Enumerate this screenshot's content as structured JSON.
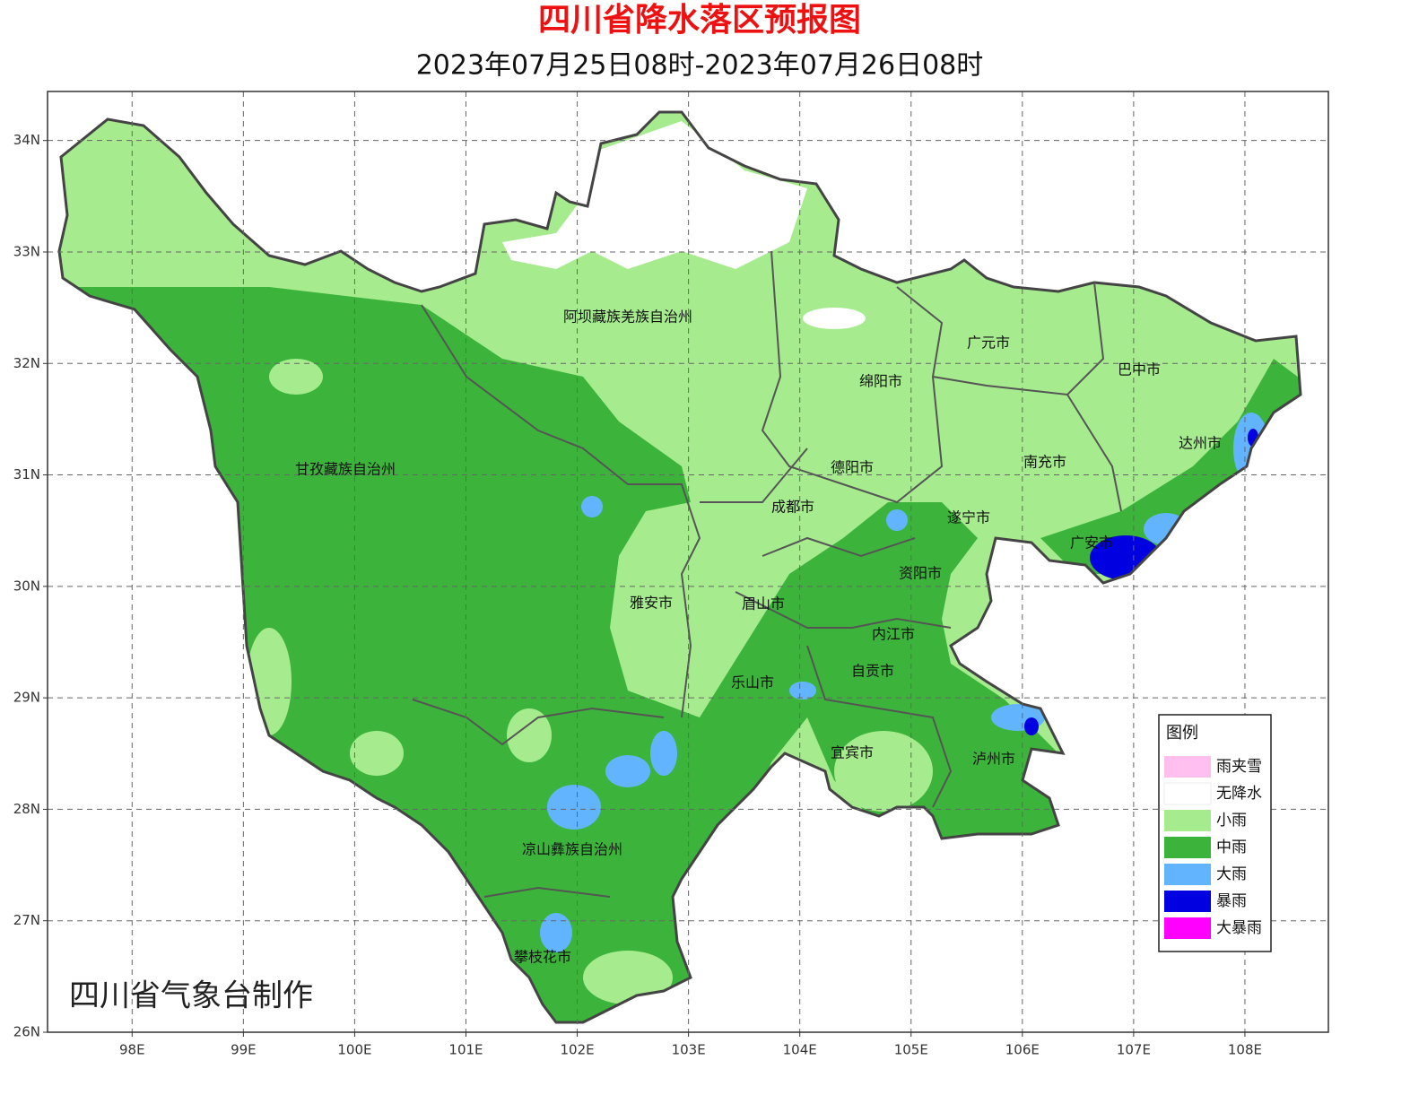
{
  "title": "四川省降水落区预报图",
  "subtitle": "2023年07月25日08时-2023年07月26日08时",
  "credit": "四川省气象台制作",
  "map": {
    "lon_range": [
      97.24,
      108.75
    ],
    "lat_range": [
      26,
      34.44
    ],
    "lon_ticks": [
      {
        "value": 98,
        "label": "98E"
      },
      {
        "value": 99,
        "label": "99E"
      },
      {
        "value": 100,
        "label": "100E"
      },
      {
        "value": 101,
        "label": "101E"
      },
      {
        "value": 102,
        "label": "102E"
      },
      {
        "value": 103,
        "label": "103E"
      },
      {
        "value": 104,
        "label": "104E"
      },
      {
        "value": 105,
        "label": "105E"
      },
      {
        "value": 106,
        "label": "106E"
      },
      {
        "value": 107,
        "label": "107E"
      },
      {
        "value": 108,
        "label": "108E"
      }
    ],
    "lat_ticks": [
      {
        "value": 34,
        "label": "34N"
      },
      {
        "value": 33,
        "label": "33N"
      },
      {
        "value": 32,
        "label": "32N"
      },
      {
        "value": 31,
        "label": "31N"
      },
      {
        "value": 30,
        "label": "30N"
      },
      {
        "value": 29,
        "label": "29N"
      },
      {
        "value": 28,
        "label": "28N"
      },
      {
        "value": 27,
        "label": "27N"
      },
      {
        "value": 26,
        "label": "26N"
      }
    ],
    "regions": [
      "阿坝藏族羌族自治州",
      "广元市",
      "巴中市",
      "绵阳市",
      "达州市",
      "南充市",
      "德阳市",
      "甘孜藏族自治州",
      "成都市",
      "遂宁市",
      "广安市",
      "资阳市",
      "雅安市",
      "眉山市",
      "内江市",
      "自贡市",
      "乐山市",
      "宜宾市",
      "泸州市",
      "凉山彝族自治州",
      "攀枝花市"
    ]
  },
  "legend": {
    "title": "图例",
    "items": [
      {
        "label": "雨夹雪",
        "color": "#ffc0f0"
      },
      {
        "label": "无降水",
        "color": "#ffffff"
      },
      {
        "label": "小雨",
        "color": "#a6ec8f"
      },
      {
        "label": "中雨",
        "color": "#3cb43c"
      },
      {
        "label": "大雨",
        "color": "#63b4ff"
      },
      {
        "label": "暴雨",
        "color": "#0000e0"
      },
      {
        "label": "大暴雨",
        "color": "#ff00ff"
      }
    ]
  }
}
